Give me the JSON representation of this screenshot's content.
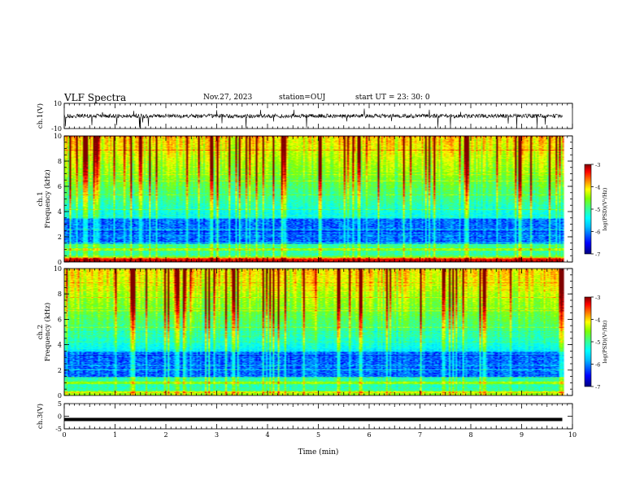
{
  "header": {
    "title": "VLF Spectra",
    "date": "Nov.27, 2023",
    "station": "station=OUJ",
    "start": "start  UT  =   23: 30: 0"
  },
  "chart_data": [
    {
      "type": "line",
      "name": "ch1-waveform",
      "ylabel": "ch.1(V)",
      "ylim": [
        -10,
        10
      ],
      "yticks": [
        "10",
        "-10"
      ],
      "xlim": [
        0,
        10
      ],
      "baseline": 0,
      "color": "#000000"
    },
    {
      "type": "heatmap",
      "name": "ch1-spectrogram",
      "ylabel_lines": [
        "ch.1",
        "Frequency  (kHz)"
      ],
      "ylim": [
        0,
        10
      ],
      "yticks": [
        "0",
        "2",
        "4",
        "6",
        "8",
        "10"
      ],
      "xlim": [
        0,
        10
      ],
      "data_extent_min": 9.8,
      "colorbar": {
        "label": "log(PSD)(V²/Hz)",
        "range": [
          -7,
          -3
        ],
        "ticks": [
          "-3",
          "-4",
          "-5",
          "-6",
          "-7"
        ]
      }
    },
    {
      "type": "heatmap",
      "name": "ch2-spectrogram",
      "ylabel_lines": [
        "ch.2",
        "Frequency  (kHz)"
      ],
      "ylim": [
        0,
        10
      ],
      "yticks": [
        "0",
        "2",
        "4",
        "6",
        "8",
        "10"
      ],
      "xlim": [
        0,
        10
      ],
      "data_extent_min": 9.8,
      "colorbar": {
        "label": "log(PSD)(V²/Hz)",
        "range": [
          -7,
          -3
        ],
        "ticks": [
          "-3",
          "-4",
          "-5",
          "-6",
          "-7"
        ]
      }
    },
    {
      "type": "line",
      "name": "ch3-waveform",
      "ylabel": "ch.3(V)",
      "ylim": [
        -5,
        5
      ],
      "yticks": [
        "5",
        "0",
        "-5"
      ],
      "xlim": [
        0,
        10
      ],
      "level": -1.3,
      "color": "#000000"
    }
  ],
  "xaxis": {
    "label": "Time  (min)",
    "ticks": [
      "0",
      "1",
      "2",
      "3",
      "4",
      "5",
      "6",
      "7",
      "8",
      "9",
      "10"
    ]
  },
  "colormap": [
    "#00007f",
    "#0000ff",
    "#00bfff",
    "#00ffff",
    "#40ff80",
    "#80ff00",
    "#ffff00",
    "#ff8000",
    "#ff0000",
    "#7f0000"
  ]
}
